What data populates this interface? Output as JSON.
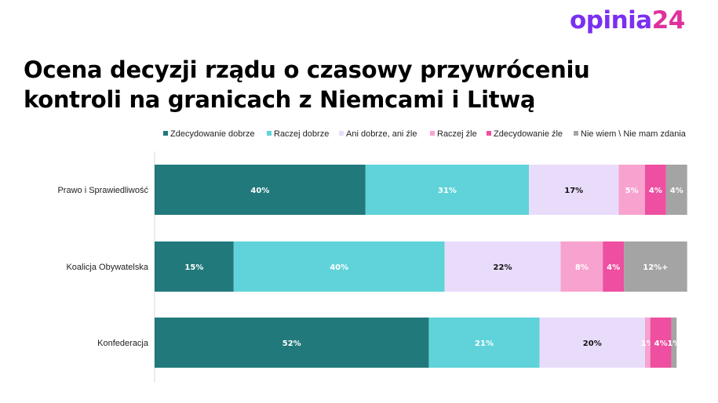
{
  "brand": {
    "logo_part1": "opinia",
    "logo_part2": "24"
  },
  "title_line1": "Ocena decyzji rządu o czasowy przywróceniu",
  "title_line2": "kontroli na granicach z Niemcami i Litwą",
  "colors": {
    "series": [
      "#21797b",
      "#5fd3d9",
      "#e9dcfb",
      "#f7a2cf",
      "#ee4fa0",
      "#a4a4a4"
    ],
    "label_on_dark": "#ffffff",
    "label_on_light": "#111111"
  },
  "chart_data": {
    "type": "bar",
    "orientation": "horizontal",
    "stacked": true,
    "title": "Ocena decyzji rządu o czasowy przywróceniu kontroli na granicach z Niemcami i Litwą",
    "legend_position": "top",
    "categories": [
      "Prawo i Sprawiedliwość",
      "Koalicja Obywatelska",
      "Konfederacja"
    ],
    "series": [
      {
        "name": "Zdecydowanie dobrze",
        "values": [
          40,
          15,
          52
        ],
        "labels": [
          "40%",
          "15%",
          "52%"
        ]
      },
      {
        "name": "Raczej dobrze",
        "values": [
          31,
          40,
          21
        ],
        "labels": [
          "31%",
          "40%",
          "21%"
        ]
      },
      {
        "name": "Ani dobrze, ani źle",
        "values": [
          17,
          22,
          20
        ],
        "labels": [
          "17%",
          "22%",
          "20%"
        ]
      },
      {
        "name": "Raczej źle",
        "values": [
          5,
          8,
          1
        ],
        "labels": [
          "5%",
          "8%",
          "1%"
        ]
      },
      {
        "name": "Zdecydowanie źle",
        "values": [
          4,
          4,
          4
        ],
        "labels": [
          "4%",
          "4%",
          "4%"
        ]
      },
      {
        "name": "Nie wiem \\ Nie mam zdania",
        "values": [
          4,
          12,
          1
        ],
        "labels": [
          "4%",
          "12%+",
          "1%"
        ]
      }
    ],
    "xlim": [
      0,
      100
    ]
  }
}
